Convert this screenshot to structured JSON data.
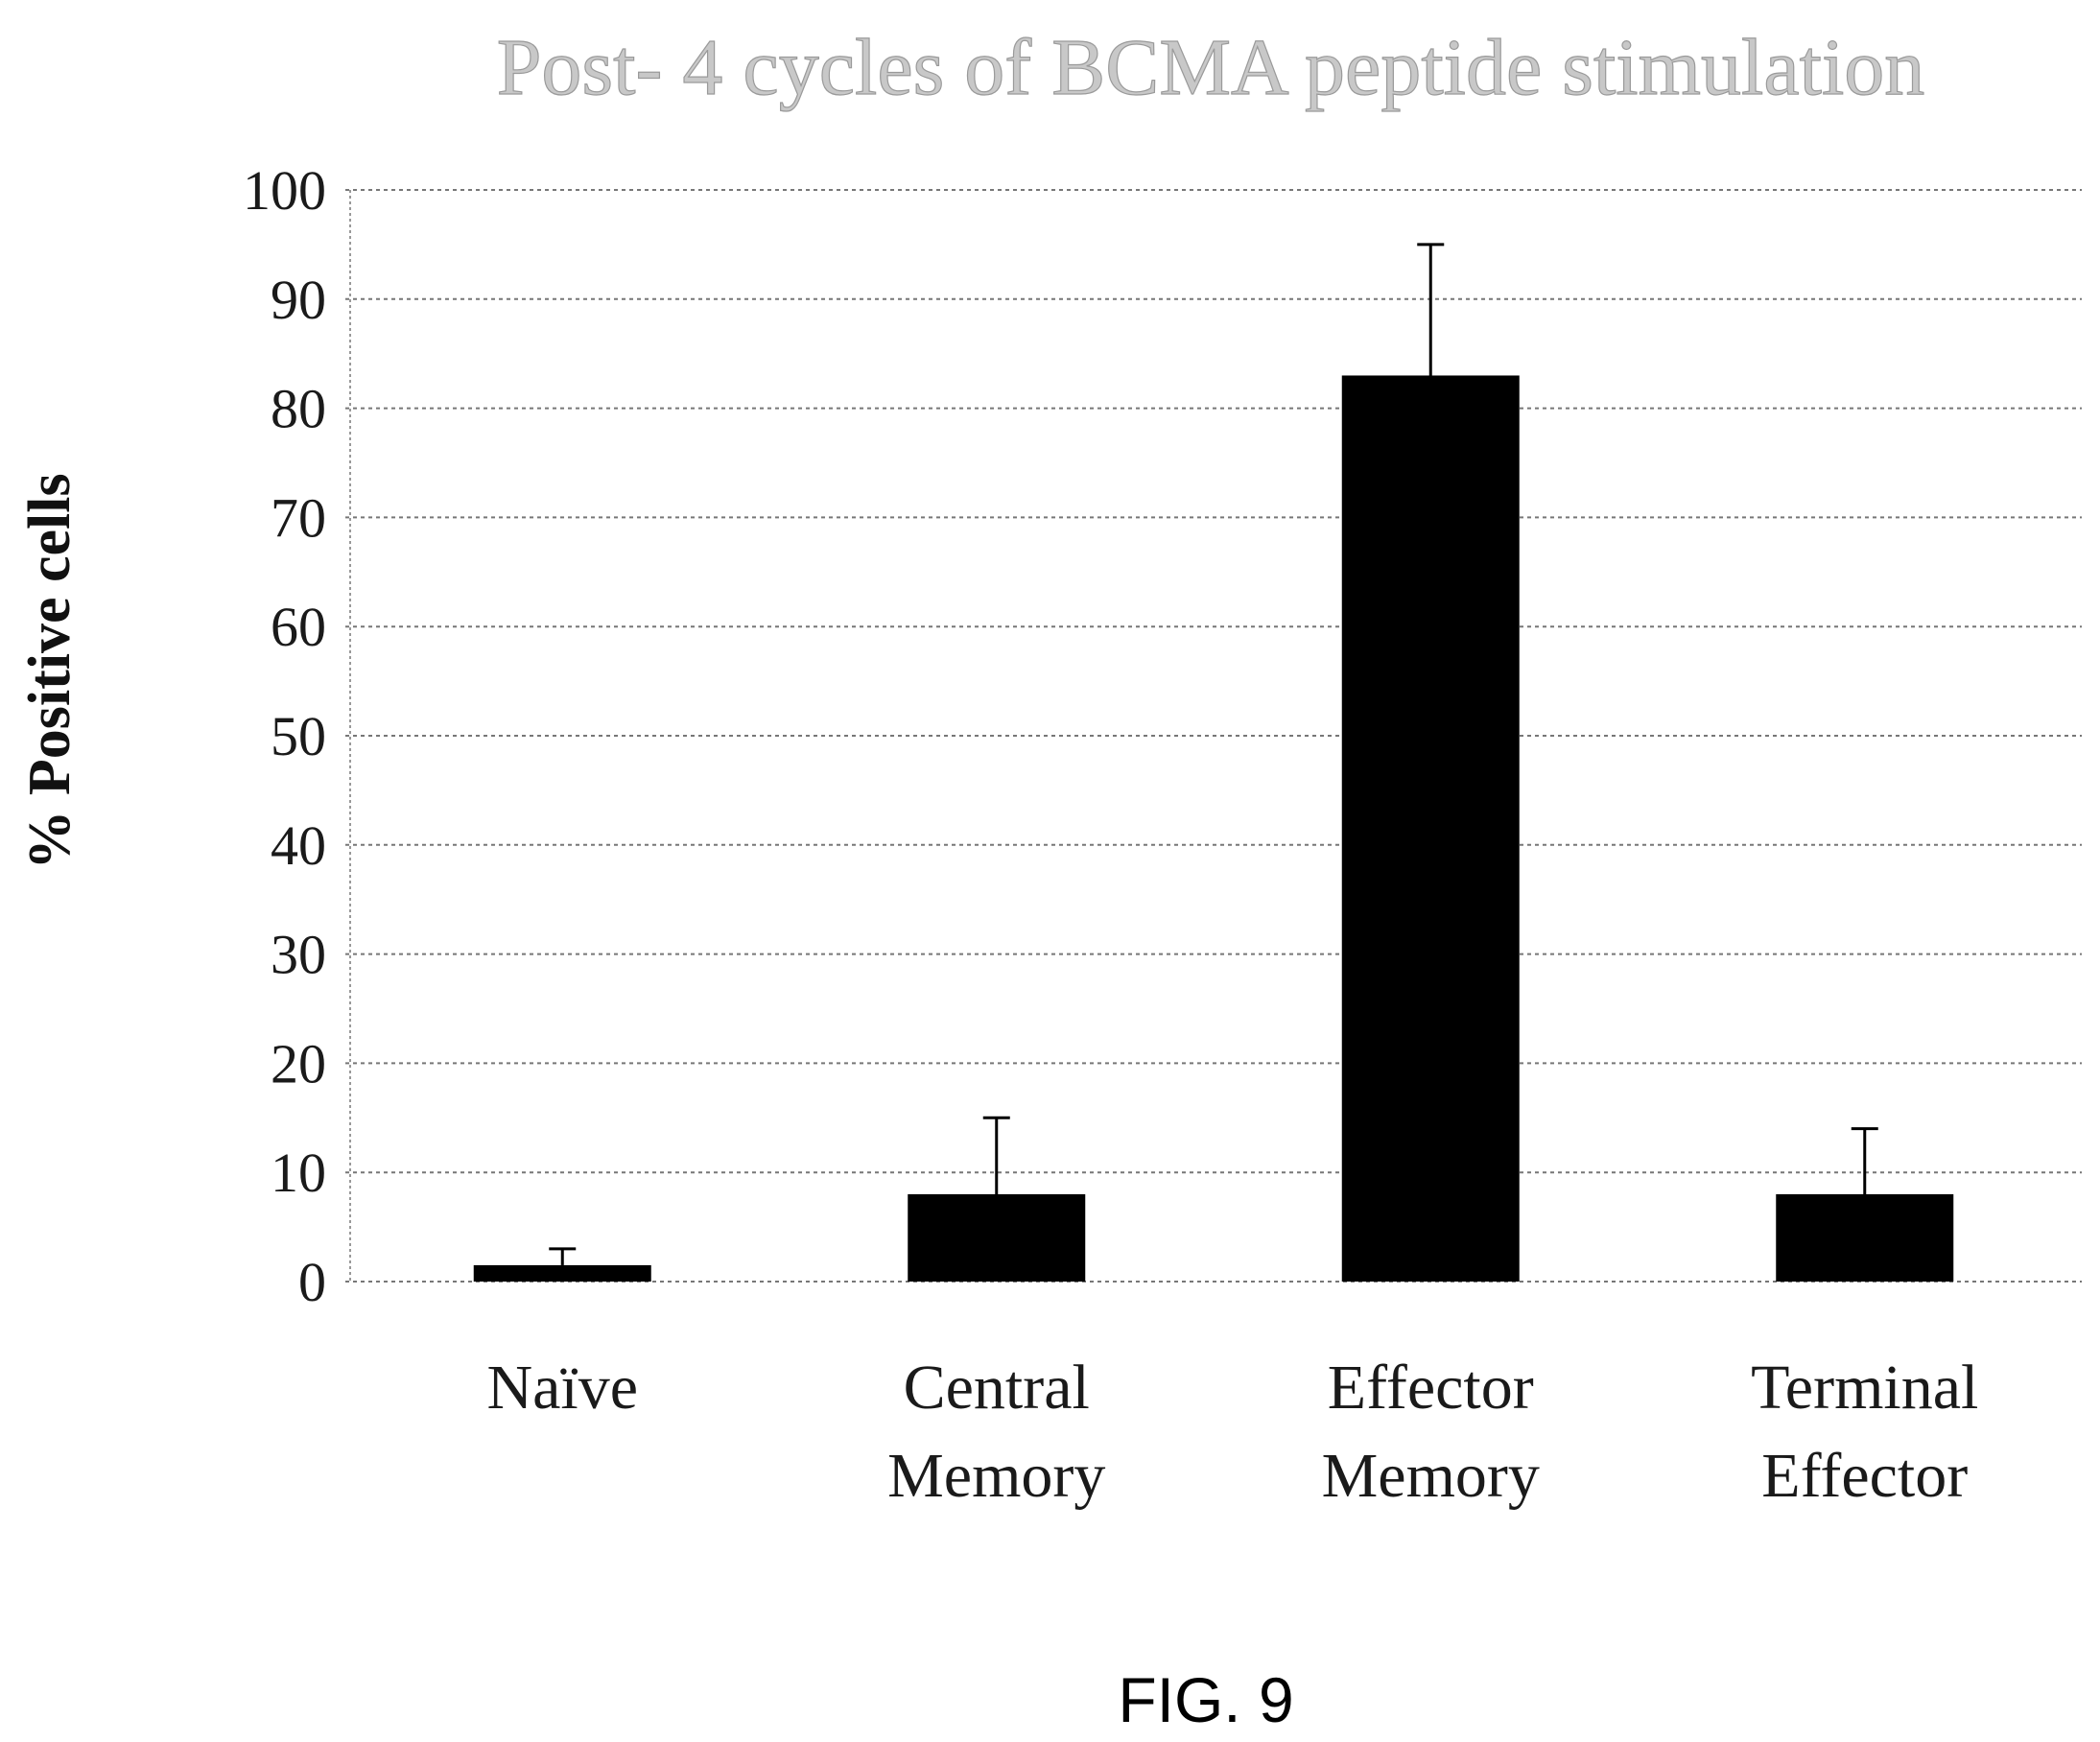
{
  "chart_data": {
    "type": "bar",
    "title": "Post- 4 cycles of BCMA peptide stimulation",
    "xlabel": "",
    "ylabel": "% Positive cells",
    "categories": [
      [
        "Naïve"
      ],
      [
        "Central",
        "Memory"
      ],
      [
        "Effector",
        "Memory"
      ],
      [
        "Terminal",
        "Effector"
      ]
    ],
    "values": [
      1.5,
      8,
      83,
      8
    ],
    "error_upper": [
      3,
      15,
      95,
      14
    ],
    "ylim": [
      0,
      100
    ],
    "yticks": [
      0,
      10,
      20,
      30,
      40,
      50,
      60,
      70,
      80,
      90,
      100
    ],
    "grid": true,
    "bar_color": "#000000"
  },
  "figure_label": "FIG. 9"
}
